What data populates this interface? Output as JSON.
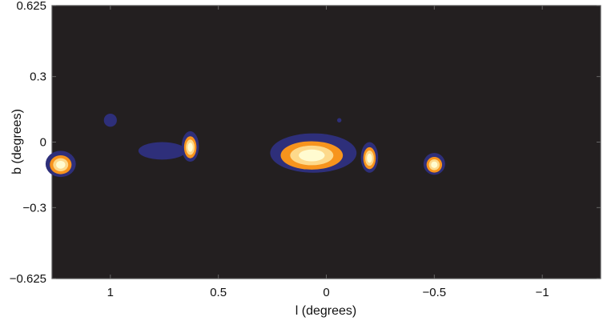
{
  "chart_data": {
    "type": "heatmap",
    "title": "",
    "xlabel": "l (degrees)",
    "ylabel": "b (degrees)",
    "xlim": [
      1.27,
      -1.27
    ],
    "ylim": [
      -0.625,
      0.625
    ],
    "x_ticks": [
      {
        "value": 1,
        "label": "1"
      },
      {
        "value": 0.5,
        "label": "0.5"
      },
      {
        "value": 0,
        "label": "0"
      },
      {
        "value": -0.5,
        "label": "−0.5"
      },
      {
        "value": -1,
        "label": "−1"
      }
    ],
    "y_ticks": [
      {
        "value": 0.625,
        "label": "0.625"
      },
      {
        "value": 0.3,
        "label": "0.3"
      },
      {
        "value": 0,
        "label": "0"
      },
      {
        "value": -0.3,
        "label": "−0.3"
      },
      {
        "value": -0.625,
        "label": "−0.625"
      }
    ],
    "background_color": "#231f20",
    "level_colors": [
      "#2e2f7a",
      "#f7941d",
      "#fdd98b",
      "#fffbd0"
    ],
    "sources": [
      {
        "l": 1.23,
        "b": -0.1,
        "dl": 0.07,
        "db": 0.06,
        "peak_level": 3
      },
      {
        "l": 1.0,
        "b": 0.1,
        "dl": 0.03,
        "db": 0.03,
        "peak_level": 0
      },
      {
        "l": 0.76,
        "b": -0.04,
        "dl": 0.11,
        "db": 0.04,
        "peak_level": 0
      },
      {
        "l": 0.63,
        "b": -0.02,
        "dl": 0.04,
        "db": 0.07,
        "peak_level": 3
      },
      {
        "l": 0.06,
        "b": -0.05,
        "dl": 0.2,
        "db": 0.09,
        "peak_level": 3
      },
      {
        "l": -0.06,
        "b": 0.1,
        "dl": 0.01,
        "db": 0.01,
        "peak_level": 0
      },
      {
        "l": -0.2,
        "b": -0.07,
        "dl": 0.04,
        "db": 0.07,
        "peak_level": 3
      },
      {
        "l": -0.5,
        "b": -0.1,
        "dl": 0.05,
        "db": 0.05,
        "peak_level": 3
      }
    ]
  }
}
